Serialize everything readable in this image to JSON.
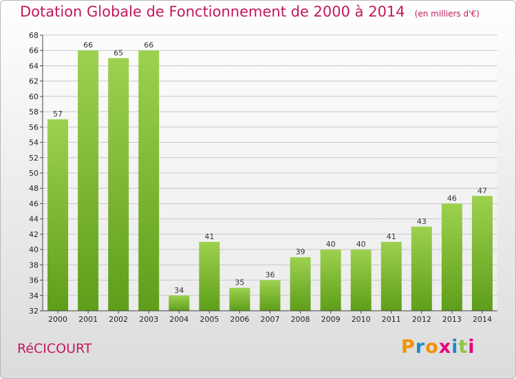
{
  "header": {
    "title": "Dotation Globale de Fonctionnement de 2000 à 2014",
    "unit": "(en milliers d'€)"
  },
  "footer": {
    "commune": "RéCICOURT",
    "logo": "Proxiti"
  },
  "colors": {
    "title": "#c2185b",
    "bar_light": "#9dd14f",
    "bar_dark": "#5e9e1a",
    "logo_letters": [
      "#f39200",
      "#1c8ccc",
      "#f39200",
      "#e6007e",
      "#1c8ccc",
      "#8dc63f",
      "#e6007e"
    ]
  },
  "chart_data": {
    "type": "bar",
    "categories": [
      "2000",
      "2001",
      "2002",
      "2003",
      "2004",
      "2005",
      "2006",
      "2007",
      "2008",
      "2009",
      "2010",
      "2011",
      "2012",
      "2013",
      "2014"
    ],
    "values": [
      57,
      66,
      65,
      66,
      34,
      41,
      35,
      36,
      39,
      40,
      40,
      41,
      43,
      46,
      47
    ],
    "ylim": [
      32,
      68
    ],
    "yticks": [
      32,
      34,
      36,
      38,
      40,
      42,
      44,
      46,
      48,
      50,
      52,
      54,
      56,
      58,
      60,
      62,
      64,
      66,
      68
    ],
    "grid": true,
    "data_labels": true
  }
}
